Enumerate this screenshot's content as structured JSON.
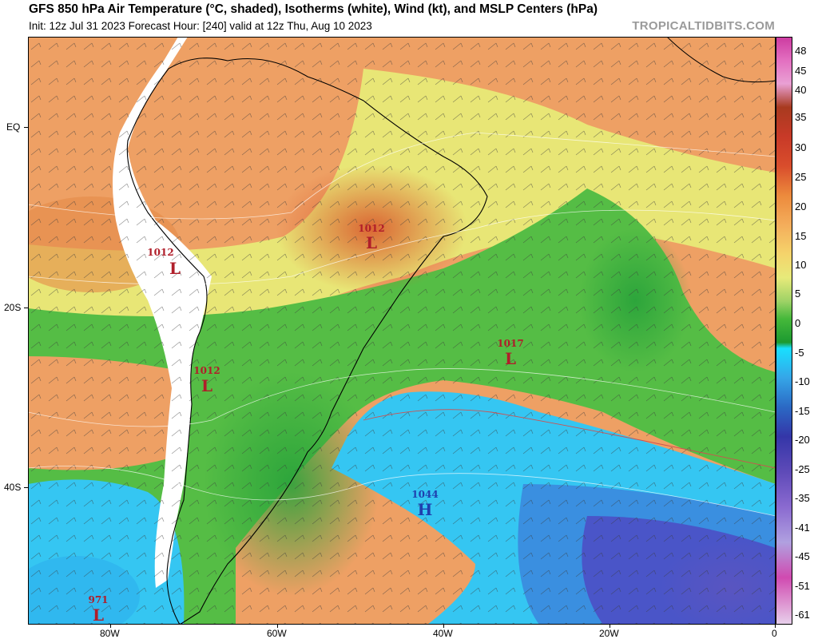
{
  "header": {
    "title": "GFS 850 hPa Air Temperature (°C, shaded), Isotherms (white), Wind (kt), and MSLP Centers (hPa)",
    "subtitle": "Init: 12z Jul 31 2023   Forecast Hour: [240]   valid at 12z Thu, Aug 10 2023",
    "credit": "TROPICALTIDBITS.COM"
  },
  "axes": {
    "lat_labels": [
      "EQ",
      "20S",
      "40S"
    ],
    "lon_labels": [
      "80W",
      "60W",
      "40W",
      "20W",
      "0"
    ]
  },
  "colorbar": {
    "labels": [
      "48",
      "45",
      "40",
      "35",
      "30",
      "25",
      "20",
      "15",
      "10",
      "5",
      "0",
      "-5",
      "-10",
      "-15",
      "-20",
      "-25",
      "-35",
      "-41",
      "-45",
      "-51",
      "-61"
    ],
    "colors": [
      "#cc3aa0",
      "#e36fc0",
      "#e9a0d4",
      "#a83a1f",
      "#c83a28",
      "#d94d2c",
      "#ec8a3c",
      "#f4ad5b",
      "#f5d46b",
      "#e7ea7a",
      "#9ed266",
      "#45b83a",
      "#1c9a30",
      "#18e0ff",
      "#35a6e8",
      "#2b69c4",
      "#3436a8",
      "#5e4ab8",
      "#8a6ad0",
      "#b0a0e0",
      "#d04ab0",
      "#e8d2ec"
    ]
  },
  "pressure_centers": [
    {
      "type": "L",
      "value": "1012"
    },
    {
      "type": "L",
      "value": "1012"
    },
    {
      "type": "L",
      "value": "1012"
    },
    {
      "type": "L",
      "value": "1017"
    },
    {
      "type": "H",
      "value": "1044"
    },
    {
      "type": "L",
      "value": "971"
    }
  ]
}
